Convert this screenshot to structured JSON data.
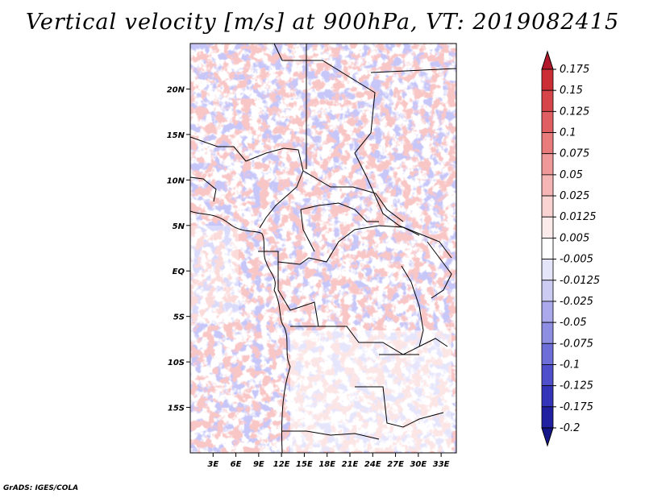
{
  "title": "Vertical velocity [m/s] at 900hPa, VT: 2019082415",
  "credit": "GrADS: IGES/COLA",
  "map": {
    "lon_range": [
      0,
      35
    ],
    "lat_range": [
      -20,
      25
    ],
    "x_ticks": [
      "3E",
      "6E",
      "9E",
      "12E",
      "15E",
      "18E",
      "21E",
      "24E",
      "27E",
      "30E",
      "33E"
    ],
    "x_tick_values": [
      3,
      6,
      9,
      12,
      15,
      18,
      21,
      24,
      27,
      30,
      33
    ],
    "y_ticks": [
      "20N",
      "15N",
      "10N",
      "5N",
      "EQ",
      "5S",
      "10S",
      "15S"
    ],
    "y_tick_values": [
      20,
      15,
      10,
      5,
      0,
      -5,
      -10,
      -15
    ]
  },
  "colorbar": {
    "labels": [
      "0.175",
      "0.15",
      "0.125",
      "0.1",
      "0.075",
      "0.05",
      "0.025",
      "0.0125",
      "0.005",
      "-0.005",
      "-0.0125",
      "-0.025",
      "-0.05",
      "-0.075",
      "-0.1",
      "-0.125",
      "-0.175",
      "-0.2"
    ],
    "colors": [
      "#b2182b",
      "#cb2f35",
      "#d6454a",
      "#e05f62",
      "#e87b7c",
      "#ef9899",
      "#f5b5b5",
      "#f9d2d2",
      "#fcebeb",
      "#ffffff",
      "#e5e5fa",
      "#ccccf2",
      "#a9a9eb",
      "#8e8ee2",
      "#6e6ed8",
      "#4f4fcc",
      "#3434b8",
      "#2020a0",
      "#15158a"
    ]
  }
}
